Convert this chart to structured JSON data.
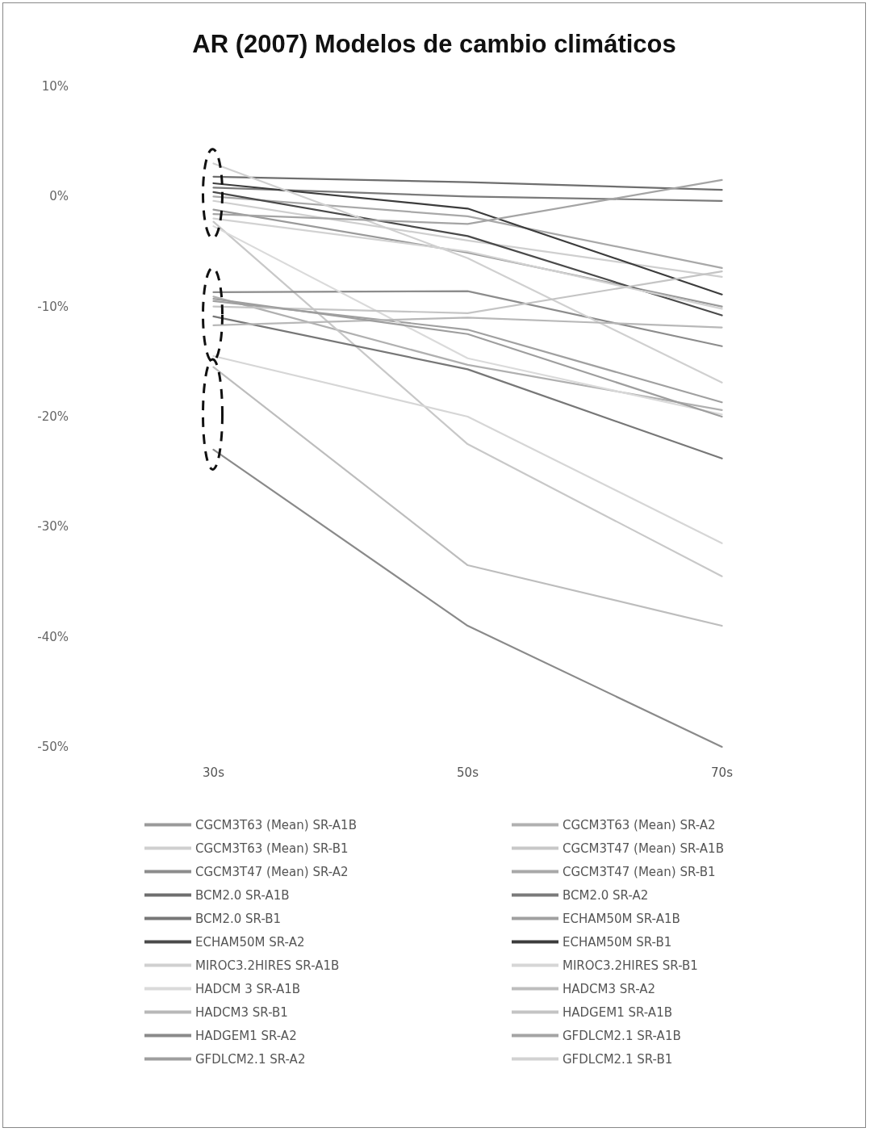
{
  "chart_data": {
    "type": "line",
    "title": "AR (2007) Modelos de cambio climáticos",
    "categories": [
      "30s",
      "50s",
      "70s"
    ],
    "ylim": [
      -50,
      10
    ],
    "yticks": [
      {
        "value": 10,
        "label": "10%"
      },
      {
        "value": 0,
        "label": "0%"
      },
      {
        "value": -10,
        "label": "-10%"
      },
      {
        "value": -20,
        "label": "-20%"
      },
      {
        "value": -30,
        "label": "-30%"
      },
      {
        "value": -40,
        "label": "-40%"
      },
      {
        "value": -50,
        "label": "-50%"
      }
    ],
    "grid": false,
    "legend": "bottom",
    "marker": "none",
    "line_style": "solid",
    "series": [
      {
        "name": "CGCM3T63 (Mean) SR-A1B",
        "color": "#9a9a9a",
        "values": [
          -1.2,
          -5.1,
          -10.0
        ]
      },
      {
        "name": "CGCM3T63 (Mean) SR-A2",
        "color": "#b0b0b0",
        "values": [
          -9.1,
          -15.3,
          -19.4
        ]
      },
      {
        "name": "CGCM3T63 (Mean) SR-B1",
        "color": "#cfcfcf",
        "values": [
          -0.4,
          -4.0,
          -7.3
        ]
      },
      {
        "name": "CGCM3T47 (Mean) SR-A1B",
        "color": "#c8c8c8",
        "values": [
          -2.3,
          -22.5,
          -34.5
        ]
      },
      {
        "name": "CGCM3T47 (Mean) SR-A2",
        "color": "#8c8c8c",
        "values": [
          -8.7,
          -8.6,
          -13.6
        ]
      },
      {
        "name": "CGCM3T47 (Mean) SR-B1",
        "color": "#a8a8a8",
        "values": [
          0.0,
          -1.8,
          -6.5
        ]
      },
      {
        "name": "BCM2.0 SR-A1B",
        "color": "#6e6e6e",
        "values": [
          1.8,
          1.3,
          0.6
        ]
      },
      {
        "name": "BCM2.0 SR-A2",
        "color": "#7a7a7a",
        "values": [
          0.8,
          0.0,
          -0.4
        ]
      },
      {
        "name": "BCM2.0 SR-B1",
        "color": "#777777",
        "values": [
          -10.9,
          -15.7,
          -23.8
        ]
      },
      {
        "name": "ECHAM50M SR-A1B",
        "color": "#a0a0a0",
        "values": [
          -9.5,
          -12.1,
          -18.7
        ]
      },
      {
        "name": "ECHAM50M SR-A2",
        "color": "#4a4a4a",
        "values": [
          0.4,
          -3.6,
          -10.8
        ]
      },
      {
        "name": "ECHAM50M SR-B1",
        "color": "#3c3c3c",
        "values": [
          1.2,
          -1.1,
          -8.9
        ]
      },
      {
        "name": "MIROC3.2HIRES SR-A1B",
        "color": "#d0d0d0",
        "values": [
          3.0,
          -5.6,
          -16.9
        ]
      },
      {
        "name": "MIROC3.2HIRES SR-B1",
        "color": "#d6d6d6",
        "values": [
          -14.5,
          -20.0,
          -31.5
        ]
      },
      {
        "name": "HADCM 3 SR-A1B",
        "color": "#dadada",
        "values": [
          -2.7,
          -14.7,
          -19.8
        ]
      },
      {
        "name": "HADCM3 SR-A2",
        "color": "#bdbdbd",
        "values": [
          -15.5,
          -33.5,
          -39.0
        ]
      },
      {
        "name": "HADCM3 SR-B1",
        "color": "#b8b8b8",
        "values": [
          -11.7,
          -11.0,
          -11.9
        ]
      },
      {
        "name": "HADGEM1 SR-A1B",
        "color": "#c4c4c4",
        "values": [
          -10.0,
          -10.6,
          -6.8
        ]
      },
      {
        "name": "HADGEM1 SR-A2",
        "color": "#8a8a8a",
        "values": [
          -23.0,
          -39.0,
          -50.0
        ]
      },
      {
        "name": "GFDLCM2.1 SR-A1B",
        "color": "#a4a4a4",
        "values": [
          -1.6,
          -2.5,
          1.5
        ]
      },
      {
        "name": "GFDLCM2.1 SR-A2",
        "color": "#9e9e9e",
        "values": [
          -9.3,
          -12.5,
          -20.0
        ]
      },
      {
        "name": "GFDLCM2.1 SR-B1",
        "color": "#d2d2d2",
        "values": [
          -2.0,
          -5.0,
          -10.2
        ]
      }
    ]
  }
}
